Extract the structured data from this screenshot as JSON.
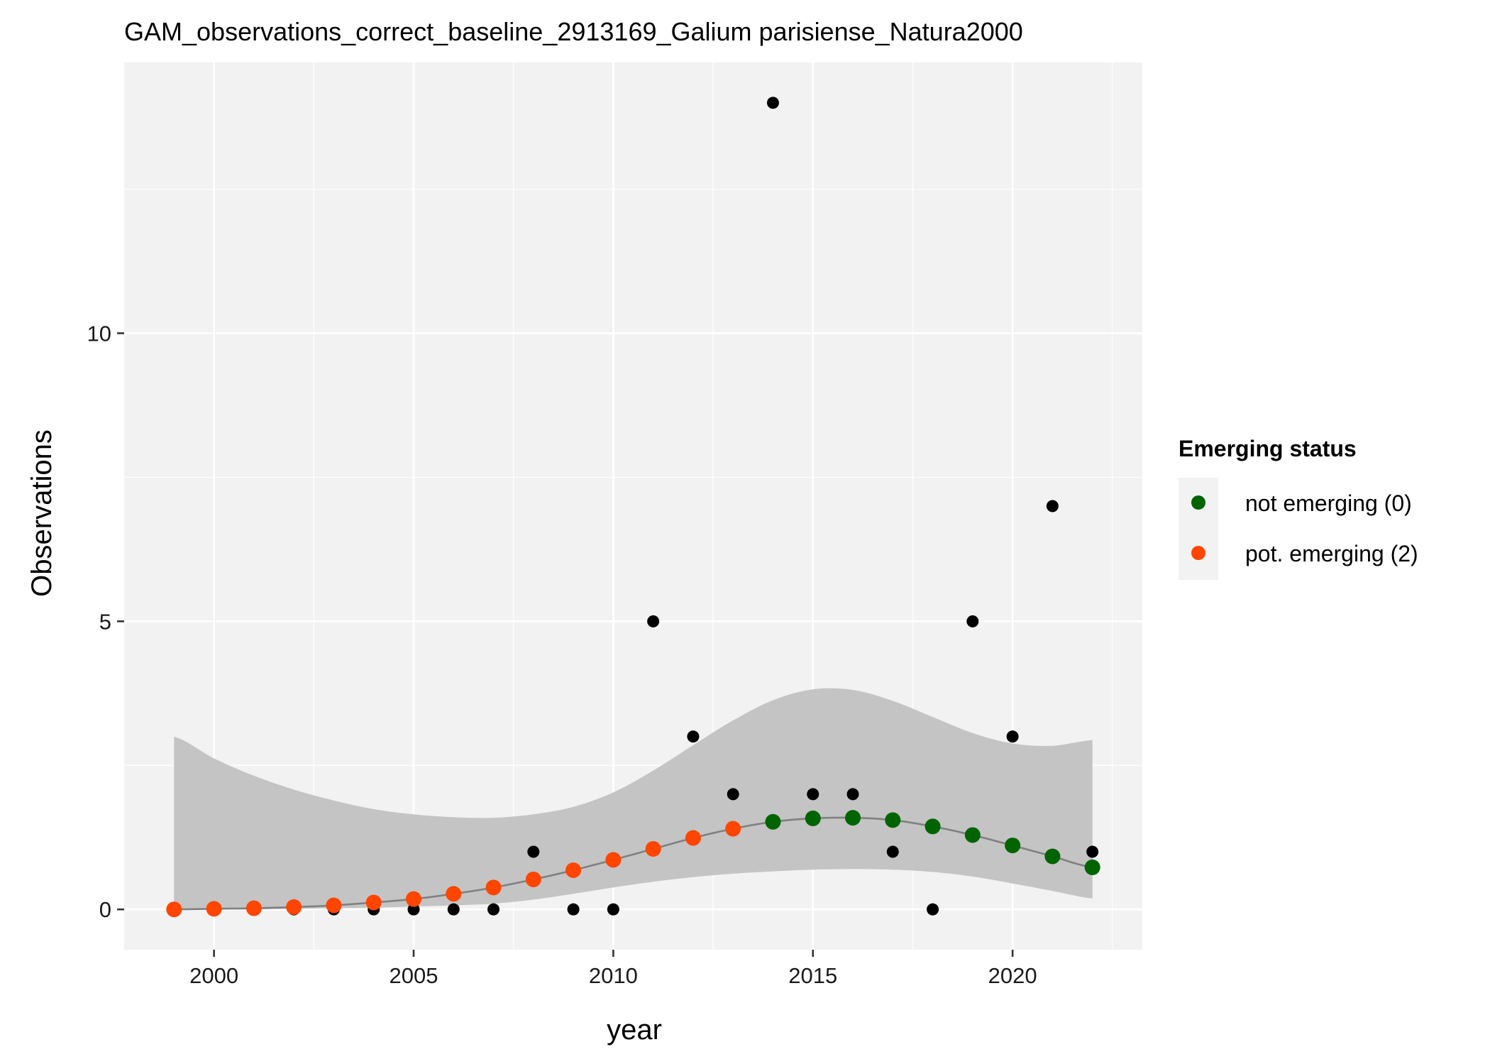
{
  "chart_data": {
    "type": "scatter",
    "title": "GAM_observations_correct_baseline_2913169_Galium parisiense_Natura2000",
    "xlabel": "year",
    "ylabel": "Observations",
    "xlim": [
      1997.75,
      2023.25
    ],
    "ylim": [
      -0.7,
      14.7
    ],
    "x_ticks": [
      2000,
      2005,
      2010,
      2015,
      2020
    ],
    "y_ticks": [
      0,
      5,
      10
    ],
    "grid": true,
    "legend_position": "right",
    "legend": {
      "title": "Emerging status",
      "entries": [
        {
          "label": "not emerging (0)",
          "color": "#006400"
        },
        {
          "label": "pot. emerging (2)",
          "color": "#ff4500"
        }
      ]
    },
    "colors": {
      "panel_background": "#f2f2f2",
      "grid": "#ffffff",
      "ribbon": "#c4c4c4",
      "fit_line": "#808080",
      "observed_points": "#000000",
      "not_emerging": "#006400",
      "pot_emerging": "#ff4500"
    },
    "observed": {
      "x": [
        1999,
        2000,
        2001,
        2002,
        2003,
        2004,
        2005,
        2006,
        2007,
        2008,
        2009,
        2010,
        2011,
        2012,
        2013,
        2014,
        2015,
        2016,
        2017,
        2018,
        2019,
        2020,
        2021,
        2022
      ],
      "y": [
        0,
        0,
        0,
        0,
        0,
        0,
        0,
        0,
        0,
        1,
        0,
        0,
        5,
        3,
        2,
        14,
        2,
        2,
        1,
        0,
        5,
        3,
        7,
        1
      ]
    },
    "fit": {
      "x": [
        1999,
        2000,
        2001,
        2002,
        2003,
        2004,
        2005,
        2006,
        2007,
        2008,
        2009,
        2010,
        2011,
        2012,
        2013,
        2014,
        2015,
        2016,
        2017,
        2018,
        2019,
        2020,
        2021,
        2022
      ],
      "y": [
        0.0,
        0.01,
        0.02,
        0.04,
        0.07,
        0.12,
        0.18,
        0.27,
        0.38,
        0.52,
        0.68,
        0.86,
        1.05,
        1.24,
        1.4,
        1.52,
        1.58,
        1.59,
        1.55,
        1.44,
        1.29,
        1.11,
        0.92,
        0.73
      ],
      "lower": [
        0.0,
        0.0,
        0.0,
        0.01,
        0.02,
        0.03,
        0.05,
        0.07,
        0.1,
        0.17,
        0.27,
        0.38,
        0.48,
        0.56,
        0.62,
        0.66,
        0.69,
        0.7,
        0.69,
        0.65,
        0.57,
        0.45,
        0.32,
        0.19
      ],
      "upper": [
        3.0,
        2.62,
        2.32,
        2.08,
        1.89,
        1.74,
        1.65,
        1.6,
        1.59,
        1.65,
        1.78,
        2.03,
        2.41,
        2.85,
        3.28,
        3.63,
        3.82,
        3.81,
        3.62,
        3.34,
        3.06,
        2.88,
        2.84,
        2.94
      ],
      "status": [
        "pot. emerging (2)",
        "pot. emerging (2)",
        "pot. emerging (2)",
        "pot. emerging (2)",
        "pot. emerging (2)",
        "pot. emerging (2)",
        "pot. emerging (2)",
        "pot. emerging (2)",
        "pot. emerging (2)",
        "pot. emerging (2)",
        "pot. emerging (2)",
        "pot. emerging (2)",
        "pot. emerging (2)",
        "pot. emerging (2)",
        "pot. emerging (2)",
        "not emerging (0)",
        "not emerging (0)",
        "not emerging (0)",
        "not emerging (0)",
        "not emerging (0)",
        "not emerging (0)",
        "not emerging (0)",
        "not emerging (0)",
        "not emerging (0)"
      ]
    }
  }
}
